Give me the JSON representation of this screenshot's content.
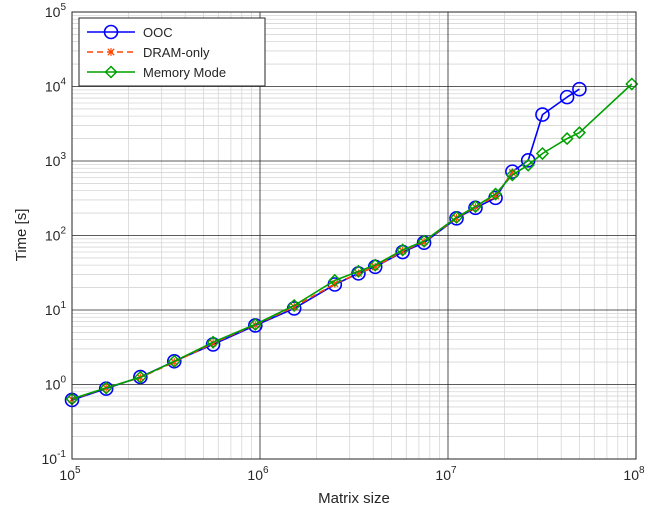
{
  "chart_data": {
    "type": "line",
    "xlabel": "Matrix size",
    "ylabel": "Time [s]",
    "xscale": "log",
    "yscale": "log",
    "xlim": [
      100000,
      100000000
    ],
    "ylim": [
      0.1,
      100000
    ],
    "grid": "major and minor",
    "legend": "top-left",
    "x_tick_labels": [
      {
        "value": 100000,
        "base": "10",
        "exp": "5"
      },
      {
        "value": 1000000,
        "base": "10",
        "exp": "6"
      },
      {
        "value": 10000000,
        "base": "10",
        "exp": "7"
      },
      {
        "value": 100000000,
        "base": "10",
        "exp": "8"
      }
    ],
    "y_tick_labels": [
      {
        "value": 0.1,
        "base": "10",
        "exp": "-1"
      },
      {
        "value": 1,
        "base": "10",
        "exp": "0"
      },
      {
        "value": 10,
        "base": "10",
        "exp": "1"
      },
      {
        "value": 100,
        "base": "10",
        "exp": "2"
      },
      {
        "value": 1000,
        "base": "10",
        "exp": "3"
      },
      {
        "value": 10000,
        "base": "10",
        "exp": "4"
      },
      {
        "value": 100000,
        "base": "10",
        "exp": "5"
      }
    ],
    "series": [
      {
        "name": "OOC",
        "color": "#0000ff",
        "marker": "circle",
        "line_style": "solid",
        "x": [
          100000,
          152000,
          231000,
          350000,
          563000,
          944000,
          1520000,
          2500000,
          3340000,
          4100000,
          5740000,
          7460000,
          11100000,
          14000000,
          17900000,
          22000000,
          26700000,
          31800000,
          43000000,
          50000000
        ],
        "y": [
          0.62,
          0.88,
          1.26,
          2.05,
          3.45,
          6.2,
          10.5,
          22,
          31,
          38,
          60,
          80,
          170,
          235,
          320,
          720,
          1020,
          4200,
          7200,
          9200
        ]
      },
      {
        "name": "DRAM-only",
        "color": "#ff4500",
        "marker": "x",
        "line_style": "dashed",
        "x": [
          100000,
          152000,
          231000,
          350000,
          563000,
          944000,
          1520000,
          2500000,
          3340000,
          4100000,
          5740000,
          7460000,
          11100000,
          14000000,
          17900000,
          22000000
        ],
        "y": [
          0.63,
          0.9,
          1.24,
          2.0,
          3.6,
          6.3,
          11,
          22.5,
          31,
          38,
          62,
          82,
          172,
          240,
          340,
          700
        ]
      },
      {
        "name": "Memory Mode",
        "color": "#00a000",
        "marker": "diamond",
        "line_style": "solid",
        "x": [
          100000,
          152000,
          231000,
          350000,
          563000,
          944000,
          1520000,
          2500000,
          3340000,
          4100000,
          5740000,
          7460000,
          11100000,
          14000000,
          17900000,
          22000000,
          26700000,
          31800000,
          43000000,
          50000000,
          95000000
        ],
        "y": [
          0.64,
          0.9,
          1.25,
          2.05,
          3.7,
          6.4,
          11.5,
          25,
          33,
          40,
          64,
          84,
          175,
          245,
          360,
          650,
          880,
          1260,
          2000,
          2400,
          10800
        ]
      }
    ]
  }
}
